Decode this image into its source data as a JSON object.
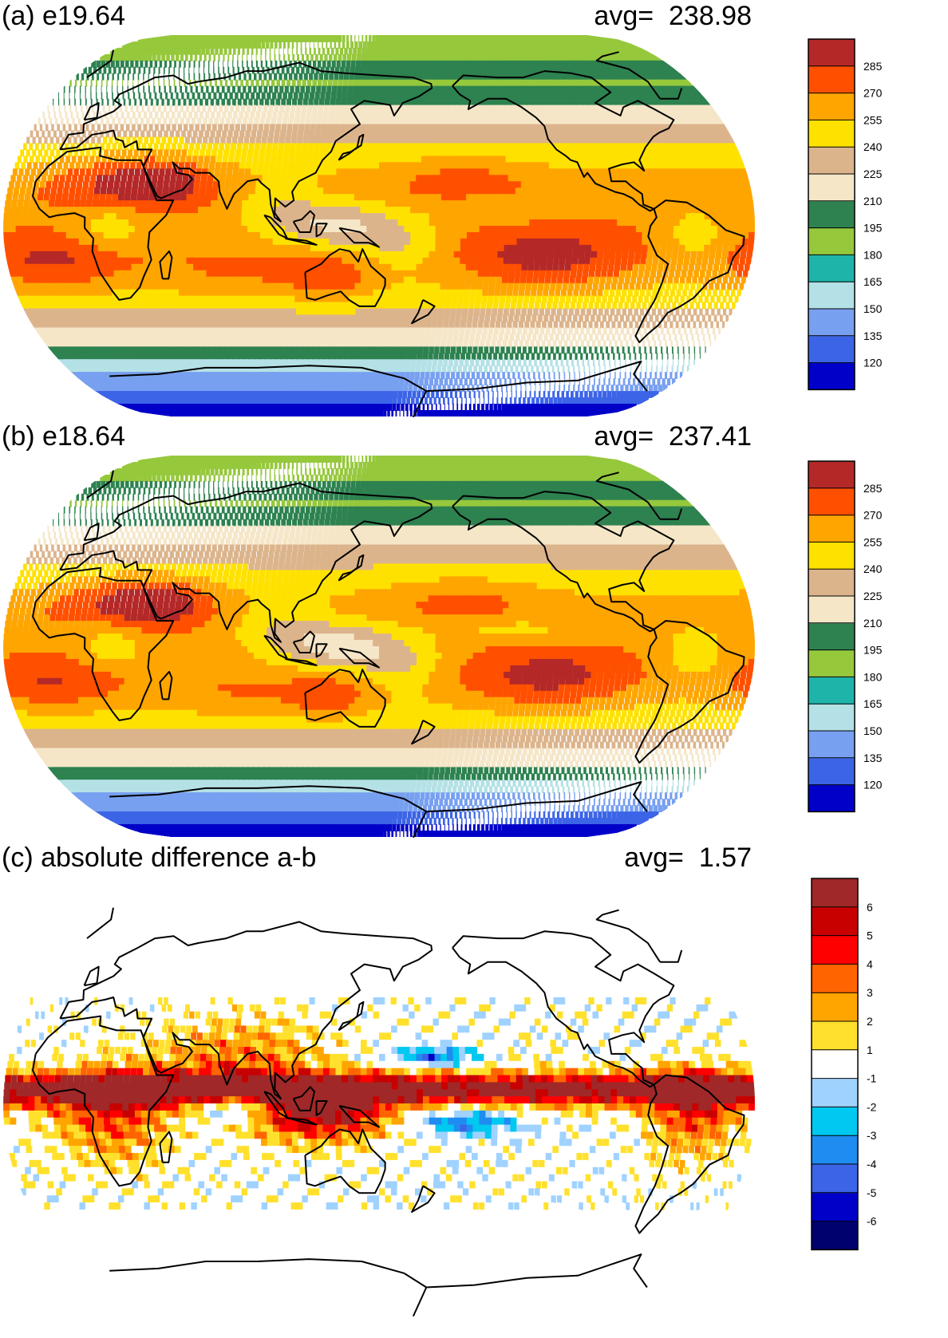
{
  "panels": [
    {
      "id": "a",
      "title": "(a) e19.64",
      "avg_label": "avg=",
      "avg_value": "238.98",
      "colorbar": {
        "colors": [
          "#0000c8",
          "#3c64e6",
          "#78a0f0",
          "#b4e1e6",
          "#1eb4aa",
          "#96c83c",
          "#2d8250",
          "#f5e6c8",
          "#dcb48c",
          "#ffe100",
          "#ffa500",
          "#ff5000",
          "#b42828"
        ],
        "tick_labels": [
          "120",
          "135",
          "150",
          "165",
          "180",
          "195",
          "210",
          "225",
          "240",
          "255",
          "270",
          "285"
        ]
      },
      "legend_colors": {
        "tropics_hot": "#b42828",
        "warm": "#ff5000",
        "mid": "#ffa500",
        "yellow": "#ffe100",
        "tan": "#dcb48c",
        "cream": "#f5e6c8",
        "dark_green": "#2d8250",
        "light_green": "#96c83c",
        "teal": "#1eb4aa",
        "light_blue": "#b4e1e6",
        "blue": "#3c64e6"
      }
    },
    {
      "id": "b",
      "title": "(b) e18.64",
      "avg_label": "avg=",
      "avg_value": "237.41",
      "colorbar": {
        "colors": [
          "#0000c8",
          "#3c64e6",
          "#78a0f0",
          "#b4e1e6",
          "#1eb4aa",
          "#96c83c",
          "#2d8250",
          "#f5e6c8",
          "#dcb48c",
          "#ffe100",
          "#ffa500",
          "#ff5000",
          "#b42828"
        ],
        "tick_labels": [
          "120",
          "135",
          "150",
          "165",
          "180",
          "195",
          "210",
          "225",
          "240",
          "255",
          "270",
          "285"
        ]
      }
    },
    {
      "id": "c",
      "title": "(c) absolute difference a-b",
      "avg_label": "avg=",
      "avg_value": "1.57",
      "colorbar": {
        "colors": [
          "#00006e",
          "#0000c8",
          "#3c64e6",
          "#1e8cf0",
          "#00c8f0",
          "#a0d2ff",
          "#ffffff",
          "#ffe12d",
          "#ffa500",
          "#ff6400",
          "#ff0000",
          "#c80000",
          "#a02828"
        ],
        "tick_labels": [
          "-6",
          "-5",
          "-4",
          "-3",
          "-2",
          "-1",
          "1",
          "2",
          "3",
          "4",
          "5",
          "6"
        ]
      }
    }
  ],
  "map_colors": {
    "coast": "#000000",
    "ocean_edge": "#ffffff"
  }
}
